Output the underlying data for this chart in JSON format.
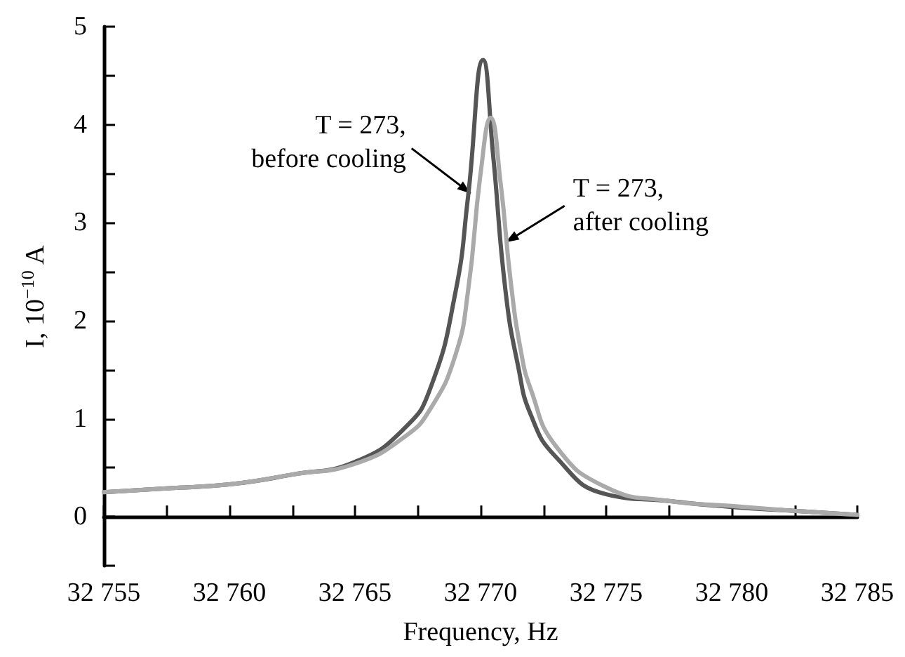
{
  "chart_data": {
    "type": "line",
    "xlabel": "Frequency, Hz",
    "ylabel": "I, 10$^{−10}$ A",
    "xlim": [
      32755,
      32785
    ],
    "xticks": [
      {
        "value": 32755,
        "label": "32 755"
      },
      {
        "value": 32757.5,
        "label": null
      },
      {
        "value": 32760,
        "label": "32 760"
      },
      {
        "value": 32762.5,
        "label": null
      },
      {
        "value": 32765,
        "label": "32 765"
      },
      {
        "value": 32767.5,
        "label": null
      },
      {
        "value": 32770,
        "label": "32 770"
      },
      {
        "value": 32772.5,
        "label": null
      },
      {
        "value": 32775,
        "label": "32 775"
      },
      {
        "value": 32777.5,
        "label": null
      },
      {
        "value": 32780,
        "label": "32 780"
      },
      {
        "value": 32782.5,
        "label": null
      },
      {
        "value": 32785,
        "label": "32 785"
      }
    ],
    "ylim": [
      -0.5,
      5
    ],
    "yticks": [
      {
        "value": -0.5,
        "label": null
      },
      0,
      {
        "value": 0.5,
        "label": null
      },
      1,
      {
        "value": 1.5,
        "label": null
      },
      2,
      {
        "value": 2.5,
        "label": null
      },
      3,
      {
        "value": 3.5,
        "label": null
      },
      4,
      {
        "value": 4.5,
        "label": null
      },
      5
    ],
    "grid": false,
    "marker": "none",
    "line_style": "solid",
    "series": [
      {
        "color": "#555555",
        "x": [
          32755,
          32757.5,
          32760,
          32762.5,
          32765,
          32767,
          32768,
          32769,
          32769.5,
          32770.1,
          32770.5,
          32771,
          32771.5,
          32772,
          32773,
          32775,
          32777.5,
          32780,
          32782.5,
          32785
        ],
        "values": [
          0.25,
          0.29,
          0.33,
          0.43,
          0.56,
          0.91,
          1.31,
          2.29,
          3.26,
          4.66,
          3.69,
          2.29,
          1.53,
          1.04,
          0.61,
          0.23,
          0.16,
          0.1,
          0.06,
          0.02
        ]
      },
      {
        "color": "#aaaaaa",
        "x": [
          32755,
          32757.5,
          32760,
          32762.5,
          32765,
          32767,
          32768,
          32769,
          32769.5,
          32770,
          32770.4,
          32770.8,
          32771.2,
          32771.6,
          32772,
          32773,
          32775,
          32777.5,
          32780,
          32782.5,
          32785
        ],
        "values": [
          0.25,
          0.29,
          0.33,
          0.43,
          0.54,
          0.82,
          1.1,
          1.65,
          2.3,
          3.5,
          4.07,
          3.4,
          2.4,
          1.7,
          1.3,
          0.72,
          0.3,
          0.16,
          0.11,
          0.06,
          0.02
        ]
      }
    ],
    "annotations": [
      {
        "text": "T = 273, before cooling",
        "x": 32769.6,
        "y": 3.3
      },
      {
        "text": "T = 273, after cooling",
        "x": 32771,
        "y": 2.8
      }
    ]
  }
}
